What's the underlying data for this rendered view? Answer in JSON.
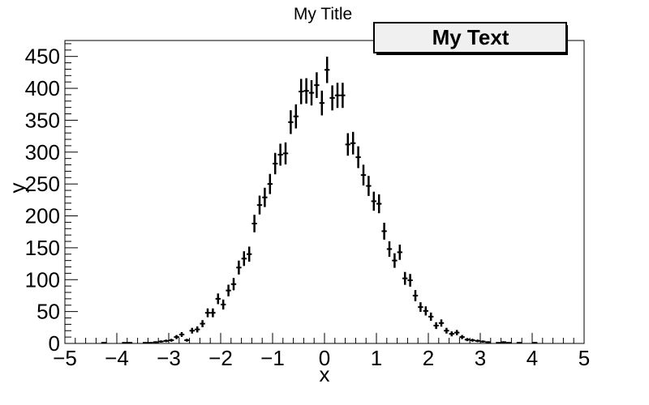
{
  "chart_data": {
    "type": "scatter",
    "title": "My Title",
    "xlabel": "x",
    "ylabel": "y",
    "xlim": [
      -5,
      5
    ],
    "ylim": [
      0,
      475
    ],
    "x_ticks": [
      "−5",
      "−4",
      "−3",
      "−2",
      "−1",
      "0",
      "1",
      "2",
      "3",
      "4",
      "5"
    ],
    "y_ticks": [
      "0",
      "50",
      "100",
      "150",
      "200",
      "250",
      "300",
      "350",
      "400",
      "450"
    ],
    "grid": false,
    "legend": {
      "text": "My Text",
      "placement": "top-right",
      "fill": "#f0f0f0"
    },
    "bin_width": 0.1,
    "series": [
      {
        "marker_color": "#000000",
        "x": [
          -4.25,
          -3.85,
          -3.75,
          -3.45,
          -3.35,
          -3.25,
          -3.15,
          -3.05,
          -2.95,
          -2.85,
          -2.75,
          -2.65,
          -2.55,
          -2.45,
          -2.35,
          -2.25,
          -2.15,
          -2.05,
          -1.95,
          -1.85,
          -1.75,
          -1.65,
          -1.55,
          -1.45,
          -1.35,
          -1.25,
          -1.15,
          -1.05,
          -0.95,
          -0.85,
          -0.75,
          -0.65,
          -0.55,
          -0.45,
          -0.35,
          -0.25,
          -0.15,
          -0.05,
          0.05,
          0.15,
          0.25,
          0.35,
          0.45,
          0.55,
          0.65,
          0.75,
          0.85,
          0.95,
          1.05,
          1.15,
          1.25,
          1.35,
          1.45,
          1.55,
          1.65,
          1.75,
          1.85,
          1.95,
          2.05,
          2.15,
          2.25,
          2.35,
          2.45,
          2.55,
          2.65,
          2.75,
          2.85,
          2.95,
          3.05,
          3.15,
          3.35,
          3.45,
          3.55,
          3.75,
          4.05
        ],
        "y": [
          1,
          1,
          1,
          1,
          1,
          2,
          3,
          4,
          5,
          10,
          14,
          5,
          20,
          22,
          31,
          48,
          48,
          70,
          61,
          83,
          93,
          119,
          133,
          140,
          188,
          217,
          229,
          250,
          282,
          296,
          298,
          347,
          356,
          395,
          396,
          393,
          405,
          377,
          429,
          385,
          389,
          389,
          312,
          314,
          292,
          264,
          247,
          223,
          219,
          176,
          148,
          130,
          143,
          102,
          99,
          75,
          57,
          51,
          42,
          28,
          32,
          20,
          15,
          17,
          10,
          6,
          5,
          4,
          3,
          2,
          1,
          2,
          1,
          1,
          1
        ]
      }
    ]
  }
}
